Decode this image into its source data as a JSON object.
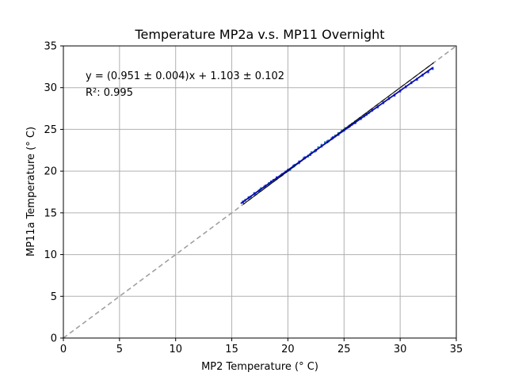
{
  "chart_data": {
    "type": "scatter",
    "title": "Temperature MP2a v.s. MP11 Overnight",
    "xlabel": "MP2 Temperature (° C)",
    "ylabel": "MP11a Temperature (° C)",
    "xlim": [
      0,
      35
    ],
    "ylim": [
      0,
      35
    ],
    "xticks": [
      "0",
      "5",
      "10",
      "15",
      "20",
      "25",
      "30",
      "35"
    ],
    "yticks": [
      "0",
      "5",
      "10",
      "15",
      "20",
      "25",
      "30",
      "35"
    ],
    "grid": true,
    "annotations": [
      "y = (0.951 ± 0.004)x + 1.103 ± 0.102",
      "R²: 0.995"
    ],
    "colors": {
      "points_teal": "#2a8c9c",
      "points_blue": "#1f3fd6",
      "fit_line": "#0b0bb0",
      "identity_line": "#000000",
      "reference_dashed": "#a0a0a0",
      "grid": "#b0b0b0"
    },
    "reference_line": {
      "x": [
        0,
        35
      ],
      "y": [
        0,
        35
      ],
      "style": "dashed"
    },
    "identity_line": {
      "x": [
        16,
        33
      ],
      "y": [
        16,
        33
      ]
    },
    "fit_line": {
      "slope": 0.951,
      "intercept": 1.103,
      "x_range": [
        15.8,
        32.9
      ]
    },
    "series": [
      {
        "color": "#2a8c9c",
        "x": [
          16.2,
          16.7,
          17.1,
          17.4,
          17.6,
          17.9,
          18.3,
          18.7,
          19.0,
          19.4,
          19.8,
          20.2,
          20.6,
          21.0,
          21.4,
          21.8,
          22.1,
          22.4,
          22.7,
          23.0,
          23.3,
          23.6,
          23.9,
          24.2,
          24.5,
          24.8,
          25.1,
          25.4,
          25.7,
          26.0,
          26.4,
          26.8,
          27.2
        ],
        "y": [
          16.5,
          16.9,
          17.3,
          17.6,
          17.9,
          18.1,
          18.5,
          18.9,
          19.1,
          19.5,
          19.9,
          20.2,
          20.7,
          21.0,
          21.5,
          21.8,
          22.2,
          22.4,
          22.8,
          23.1,
          23.4,
          23.6,
          23.9,
          24.2,
          24.5,
          24.8,
          25.1,
          25.3,
          25.6,
          25.9,
          26.3,
          26.6,
          27.0
        ]
      },
      {
        "color": "#1f3fd6",
        "x": [
          16.0,
          16.5,
          17.0,
          17.5,
          18.0,
          18.5,
          19.0,
          19.5,
          20.0,
          20.5,
          21.0,
          21.5,
          22.0,
          22.5,
          23.0,
          23.5,
          24.0,
          24.5,
          25.0,
          25.5,
          26.0,
          26.5,
          27.0,
          27.5,
          28.0,
          28.5,
          29.0,
          29.5,
          30.0,
          30.5,
          31.0,
          31.5,
          32.0,
          32.5,
          32.9
        ],
        "y": [
          16.3,
          16.8,
          17.3,
          17.7,
          18.2,
          18.7,
          19.2,
          19.6,
          20.1,
          20.6,
          21.1,
          21.6,
          22.0,
          22.5,
          23.0,
          23.5,
          24.0,
          24.4,
          24.9,
          25.4,
          25.8,
          26.3,
          26.8,
          27.3,
          27.7,
          28.2,
          28.7,
          29.1,
          29.6,
          30.1,
          30.6,
          31.0,
          31.5,
          31.9,
          32.3
        ]
      }
    ]
  }
}
